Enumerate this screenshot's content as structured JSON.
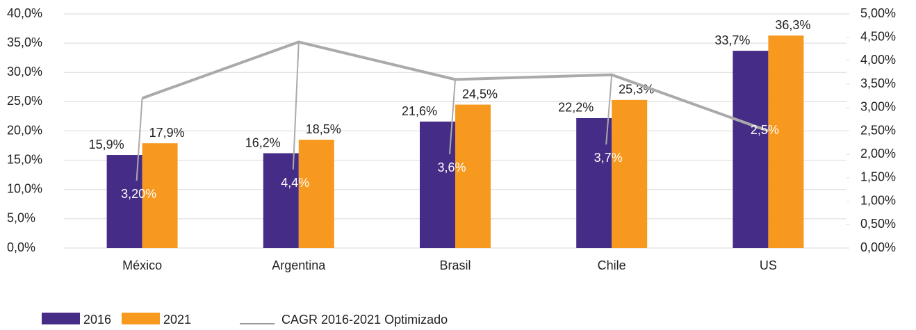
{
  "chart_data": {
    "type": "bar",
    "categories": [
      "México",
      "Argentina",
      "Brasil",
      "Chile",
      "US"
    ],
    "series": [
      {
        "name": "2016",
        "color": "#452c86",
        "values": [
          15.9,
          16.2,
          21.6,
          22.2,
          33.7
        ],
        "value_labels": [
          "15,9%",
          "16,2%",
          "21,6%",
          "22,2%",
          "33,7%"
        ]
      },
      {
        "name": "2021",
        "color": "#f7991f",
        "values": [
          17.9,
          18.5,
          24.5,
          25.3,
          36.3
        ],
        "value_labels": [
          "17,9%",
          "18,5%",
          "24,5%",
          "25,3%",
          "36,3%"
        ]
      },
      {
        "name": "CAGR 2016-2021 Optimizado",
        "type": "line",
        "axis": "y2",
        "color": "#aaaaaa",
        "values": [
          3.2,
          4.4,
          3.6,
          3.7,
          2.5
        ],
        "value_labels": [
          "3,20%",
          "4,4%",
          "3,6%",
          "3,7%",
          "2,5%"
        ]
      }
    ],
    "ylim": [
      0,
      40
    ],
    "yticks": [
      {
        "value": 0,
        "label": "0,0%"
      },
      {
        "value": 5,
        "label": "5,0%"
      },
      {
        "value": 10,
        "label": "10,0%"
      },
      {
        "value": 15,
        "label": "15,0%"
      },
      {
        "value": 20,
        "label": "20,0%"
      },
      {
        "value": 25,
        "label": "25,0%"
      },
      {
        "value": 30,
        "label": "30,0%"
      },
      {
        "value": 35,
        "label": "35,0%"
      },
      {
        "value": 40,
        "label": "40,0%"
      }
    ],
    "y2lim": [
      0,
      5
    ],
    "y2ticks": [
      {
        "value": 0,
        "label": "0,00%"
      },
      {
        "value": 0.5,
        "label": "0,50%"
      },
      {
        "value": 1,
        "label": "1,00%"
      },
      {
        "value": 1.5,
        "label": "1,50%"
      },
      {
        "value": 2,
        "label": "2,00%"
      },
      {
        "value": 2.5,
        "label": "2,50%"
      },
      {
        "value": 3,
        "label": "3,00%"
      },
      {
        "value": 3.5,
        "label": "3,50%"
      },
      {
        "value": 4,
        "label": "4,00%"
      },
      {
        "value": 4.5,
        "label": "4,50%"
      },
      {
        "value": 5,
        "label": "5,00%"
      }
    ],
    "grid": true,
    "legend": "bottom"
  }
}
